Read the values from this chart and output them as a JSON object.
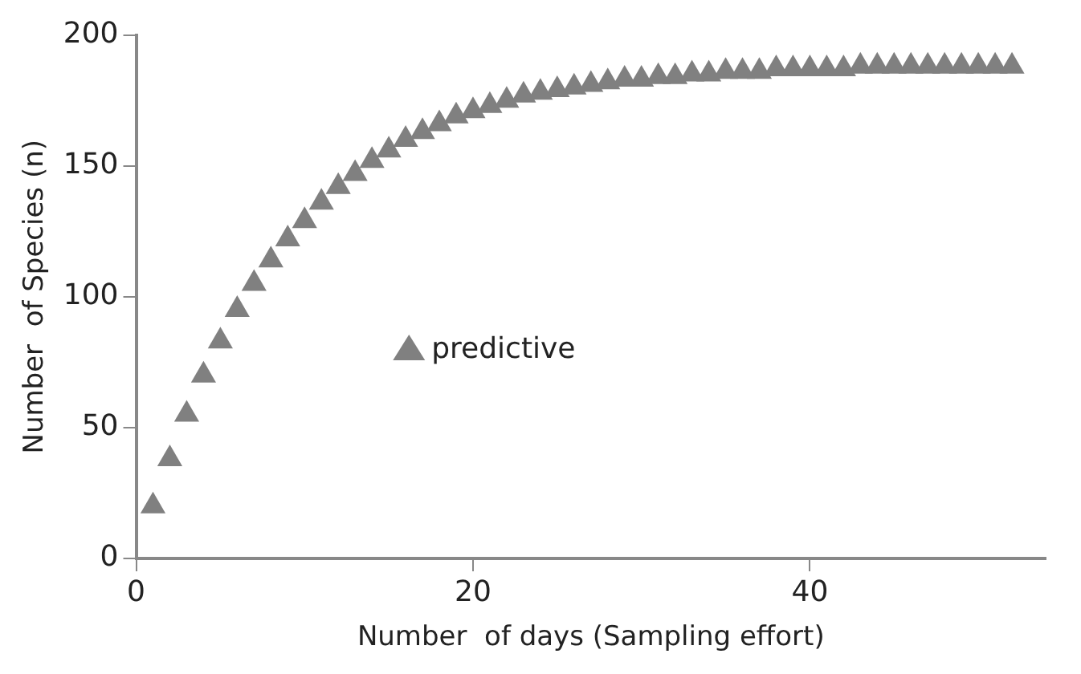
{
  "chart_data": {
    "type": "scatter",
    "xlabel": "Number  of days (Sampling effort)",
    "ylabel": "Number  of Species (n)",
    "x": [
      1,
      2,
      3,
      4,
      5,
      6,
      7,
      8,
      9,
      10,
      11,
      12,
      13,
      14,
      15,
      16,
      17,
      18,
      19,
      20,
      21,
      22,
      23,
      24,
      25,
      26,
      27,
      28,
      29,
      30,
      31,
      32,
      33,
      34,
      35,
      36,
      37,
      38,
      39,
      40,
      41,
      42,
      43,
      44,
      45,
      46,
      47,
      48,
      49,
      50,
      51,
      52
    ],
    "series": [
      {
        "name": "predictive",
        "color": "#808080",
        "values": [
          20,
          38,
          55,
          70,
          83,
          95,
          105,
          114,
          122,
          129,
          136,
          142,
          147,
          152,
          156,
          160,
          163,
          166,
          169,
          171,
          173,
          175,
          177,
          178,
          179,
          180,
          181,
          182,
          183,
          183,
          184,
          184,
          185,
          185,
          186,
          186,
          186,
          187,
          187,
          187,
          187,
          187,
          188,
          188,
          188,
          188,
          188,
          188,
          188,
          188,
          188,
          188
        ]
      }
    ],
    "xlim": [
      0,
      54
    ],
    "xticks": [
      0,
      20,
      40
    ],
    "ylim": [
      0,
      200
    ],
    "yticks": [
      0,
      50,
      100,
      150,
      200
    ],
    "grid": false,
    "legend": "center",
    "marker": "triangle"
  }
}
